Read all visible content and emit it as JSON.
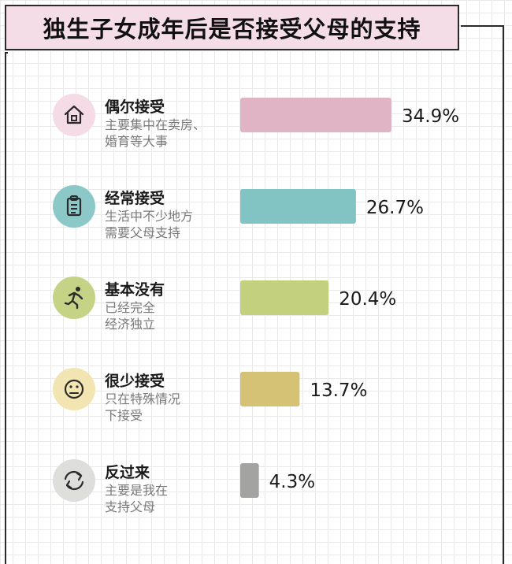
{
  "title": "独生子女成年后是否接受父母的支持",
  "chart_data": {
    "type": "bar",
    "orientation": "horizontal",
    "title": "独生子女成年后是否接受父母的支持",
    "unit": "%",
    "categories": [
      {
        "label": "偶尔接受",
        "desc": [
          "主要集中在卖房、",
          "婚育等大事"
        ],
        "value": 34.9,
        "value_label": "34.9%",
        "color": "#e1b4c5",
        "icon": "house-icon",
        "icon_bg": "#f5dbe5"
      },
      {
        "label": "经常接受",
        "desc": [
          "生活中不少地方",
          "需要父母支持"
        ],
        "value": 26.7,
        "value_label": "26.7%",
        "color": "#82c3c4",
        "icon": "clipboard-icon",
        "icon_bg": "#8dc8c8"
      },
      {
        "label": "基本没有",
        "desc": [
          "已经完全",
          "经济独立"
        ],
        "value": 20.4,
        "value_label": "20.4%",
        "color": "#c3d17e",
        "icon": "running-person-icon",
        "icon_bg": "#c4d385"
      },
      {
        "label": "很少接受",
        "desc": [
          "只在特殊情况",
          "下接受"
        ],
        "value": 13.7,
        "value_label": "13.7%",
        "color": "#d6c275",
        "icon": "neutral-face-icon",
        "icon_bg": "#f2e5b2"
      },
      {
        "label": "反过来",
        "desc": [
          "主要是我在",
          "支持父母"
        ],
        "value": 4.3,
        "value_label": "4.3%",
        "color": "#a3a3a1",
        "icon": "refresh-icon",
        "icon_bg": "#dededb"
      }
    ]
  }
}
